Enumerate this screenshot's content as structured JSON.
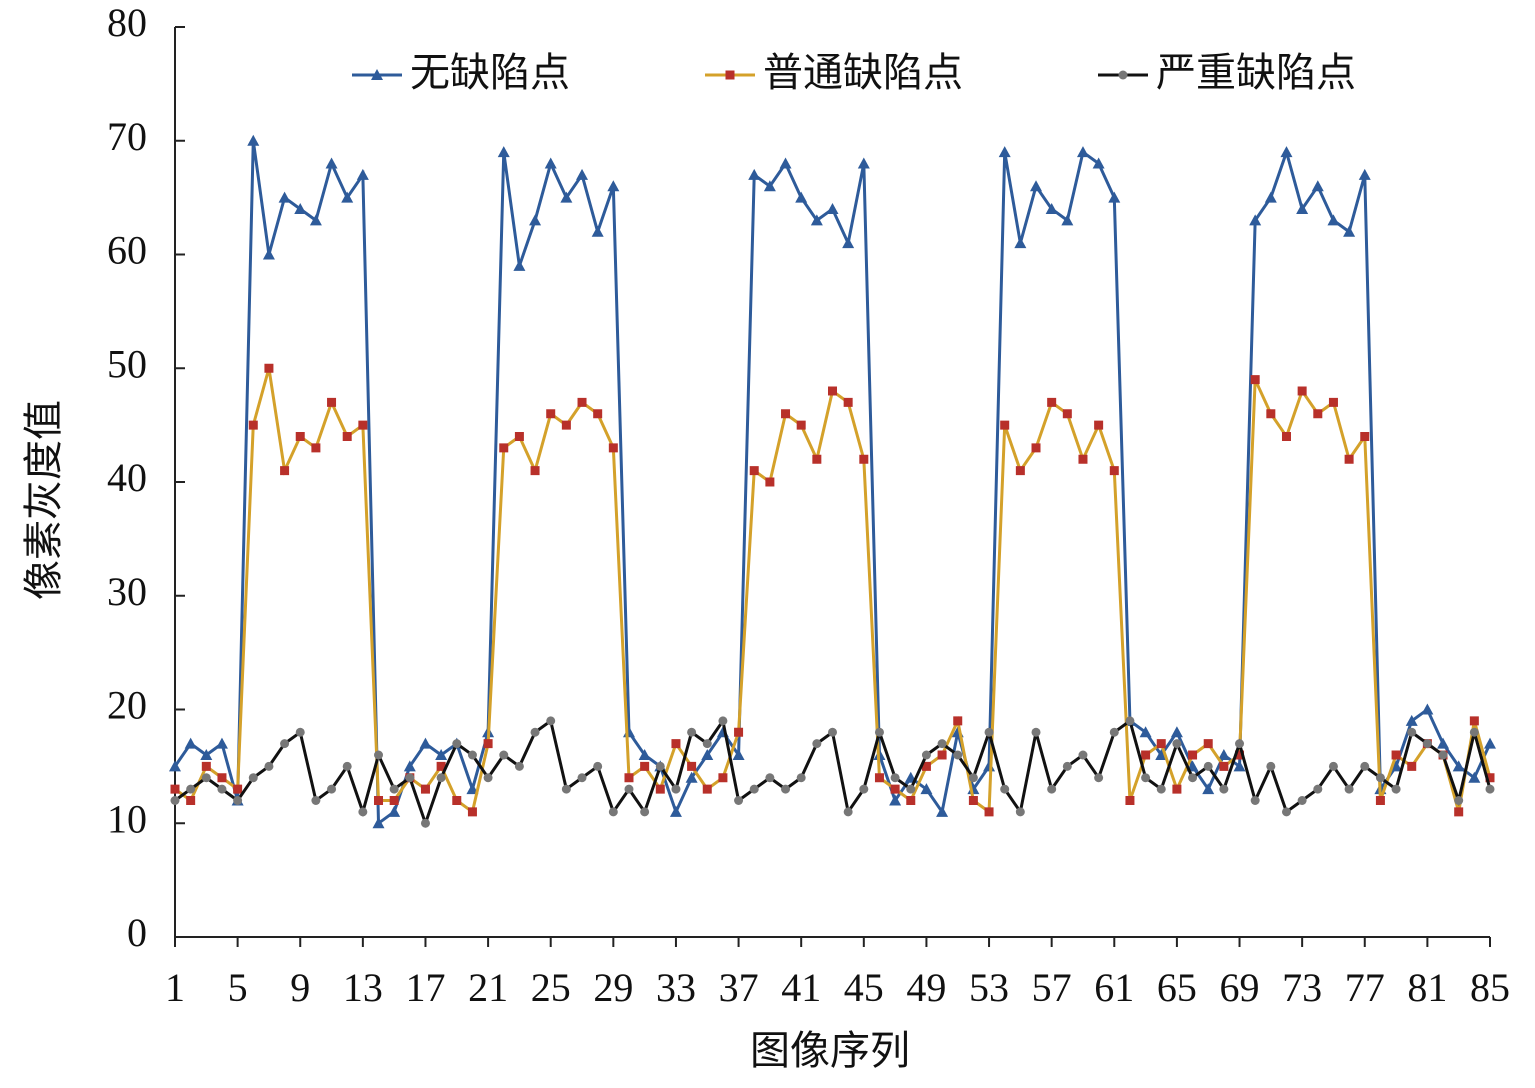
{
  "chart_data": {
    "type": "line",
    "x_label": "图像序列",
    "y_label": "像素灰度值",
    "x": [
      1,
      2,
      3,
      4,
      5,
      6,
      7,
      8,
      9,
      10,
      11,
      12,
      13,
      14,
      15,
      16,
      17,
      18,
      19,
      20,
      21,
      22,
      23,
      24,
      25,
      26,
      27,
      28,
      29,
      30,
      31,
      32,
      33,
      34,
      35,
      36,
      37,
      38,
      39,
      40,
      41,
      42,
      43,
      44,
      45,
      46,
      47,
      48,
      49,
      50,
      51,
      52,
      53,
      54,
      55,
      56,
      57,
      58,
      59,
      60,
      61,
      62,
      63,
      64,
      65,
      66,
      67,
      68,
      69,
      70,
      71,
      72,
      73,
      74,
      75,
      76,
      77,
      78,
      79,
      80,
      81,
      82,
      83,
      84,
      85
    ],
    "xlim": [
      1,
      85
    ],
    "xticks": [
      1,
      5,
      9,
      13,
      17,
      21,
      25,
      29,
      33,
      37,
      41,
      45,
      49,
      53,
      57,
      61,
      65,
      69,
      73,
      77,
      81,
      85
    ],
    "ylim": [
      0,
      80
    ],
    "yticks": [
      0,
      10,
      20,
      30,
      40,
      50,
      60,
      70,
      80
    ],
    "legend": "top",
    "series": [
      {
        "name": "无缺陷点",
        "color": "#2e5b9a",
        "marker": "triangle",
        "marker_color": "#2e5b9a",
        "values": [
          15,
          17,
          16,
          17,
          12,
          70,
          60,
          65,
          64,
          63,
          68,
          65,
          67,
          10,
          11,
          15,
          17,
          16,
          17,
          13,
          18,
          69,
          59,
          63,
          68,
          65,
          67,
          62,
          66,
          18,
          16,
          15,
          11,
          14,
          16,
          18,
          16,
          67,
          66,
          68,
          65,
          63,
          64,
          61,
          68,
          16,
          12,
          14,
          13,
          11,
          18,
          13,
          15,
          69,
          61,
          66,
          64,
          63,
          69,
          68,
          65,
          19,
          18,
          16,
          18,
          15,
          13,
          16,
          15,
          63,
          65,
          69,
          64,
          66,
          63,
          62,
          67,
          13,
          15,
          19,
          20,
          17,
          15,
          14,
          17
        ]
      },
      {
        "name": "普通缺陷点",
        "color": "#d4a12a",
        "marker": "square",
        "marker_color": "#b8302a",
        "values": [
          13,
          12,
          15,
          14,
          13,
          45,
          50,
          41,
          44,
          43,
          47,
          44,
          45,
          12,
          12,
          14,
          13,
          15,
          12,
          11,
          17,
          43,
          44,
          41,
          46,
          45,
          47,
          46,
          43,
          14,
          15,
          13,
          17,
          15,
          13,
          14,
          18,
          41,
          40,
          46,
          45,
          42,
          48,
          47,
          42,
          14,
          13,
          12,
          15,
          16,
          19,
          12,
          11,
          45,
          41,
          43,
          47,
          46,
          42,
          45,
          41,
          12,
          16,
          17,
          13,
          16,
          17,
          15,
          16,
          49,
          46,
          44,
          48,
          46,
          47,
          42,
          44,
          12,
          16,
          15,
          17,
          16,
          11,
          19,
          14
        ]
      },
      {
        "name": "严重缺陷点",
        "color": "#111111",
        "marker": "circle",
        "marker_color": "#777777",
        "values": [
          12,
          13,
          14,
          13,
          12,
          14,
          15,
          17,
          18,
          12,
          13,
          15,
          11,
          16,
          13,
          14,
          10,
          14,
          17,
          16,
          14,
          16,
          15,
          18,
          19,
          13,
          14,
          15,
          11,
          13,
          11,
          15,
          13,
          18,
          17,
          19,
          12,
          13,
          14,
          13,
          14,
          17,
          18,
          11,
          13,
          18,
          14,
          13,
          16,
          17,
          16,
          14,
          18,
          13,
          11,
          18,
          13,
          15,
          16,
          14,
          18,
          19,
          14,
          13,
          17,
          14,
          15,
          13,
          17,
          12,
          15,
          11,
          12,
          13,
          15,
          13,
          15,
          14,
          13,
          18,
          17,
          16,
          12,
          18,
          13
        ]
      }
    ]
  }
}
